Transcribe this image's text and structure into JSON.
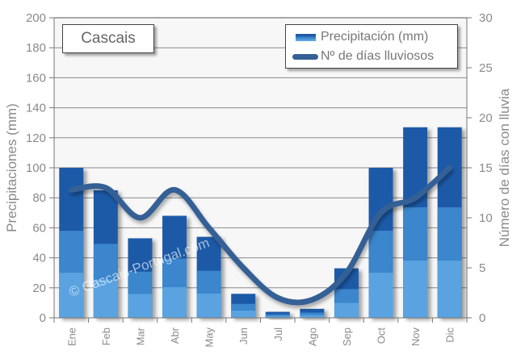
{
  "chart_data": {
    "type": "bar",
    "title": "Cascais",
    "categories": [
      "Ene",
      "Feb",
      "Mar",
      "Abr",
      "May",
      "Jun",
      "Jul",
      "Ago",
      "Sep",
      "Oct",
      "Nov",
      "Dic"
    ],
    "series": [
      {
        "name": "Precipitación (mm)",
        "type": "bar",
        "axis": "left",
        "values": [
          100,
          85,
          53,
          68,
          54,
          16,
          4,
          6,
          33,
          100,
          127,
          127
        ]
      },
      {
        "name": "Nº de días lluviosos",
        "type": "line",
        "axis": "right",
        "values": [
          12.8,
          13,
          10,
          12.8,
          9,
          5,
          2,
          1.8,
          4.5,
          10.5,
          12,
          15
        ]
      }
    ],
    "xlabel": "",
    "ylabel": "Precipitaciones (mm)",
    "ylabel_right": "Número de días con lluvia",
    "ylim": [
      0,
      200
    ],
    "ylim_right": [
      0,
      30
    ],
    "yticks": [
      0,
      20,
      40,
      60,
      80,
      100,
      120,
      140,
      160,
      180,
      200
    ],
    "yticks_right": [
      0,
      5,
      10,
      15,
      20,
      25,
      30
    ],
    "grid": true,
    "legend_position": "top-right",
    "watermark": "© Cascais-Portugal.com"
  },
  "colors": {
    "bar_top": "#1f5aa8",
    "bar_mid": "#3b86cc",
    "bar_low": "#5aa3e0",
    "line": "#356096",
    "grid": "#8a8a8a",
    "plot_bg": "#f7f7f7",
    "text": "#8a8a8a"
  },
  "legend": {
    "bar_label": "Precipitación (mm)",
    "line_label": "Nº de días lluviosos"
  }
}
